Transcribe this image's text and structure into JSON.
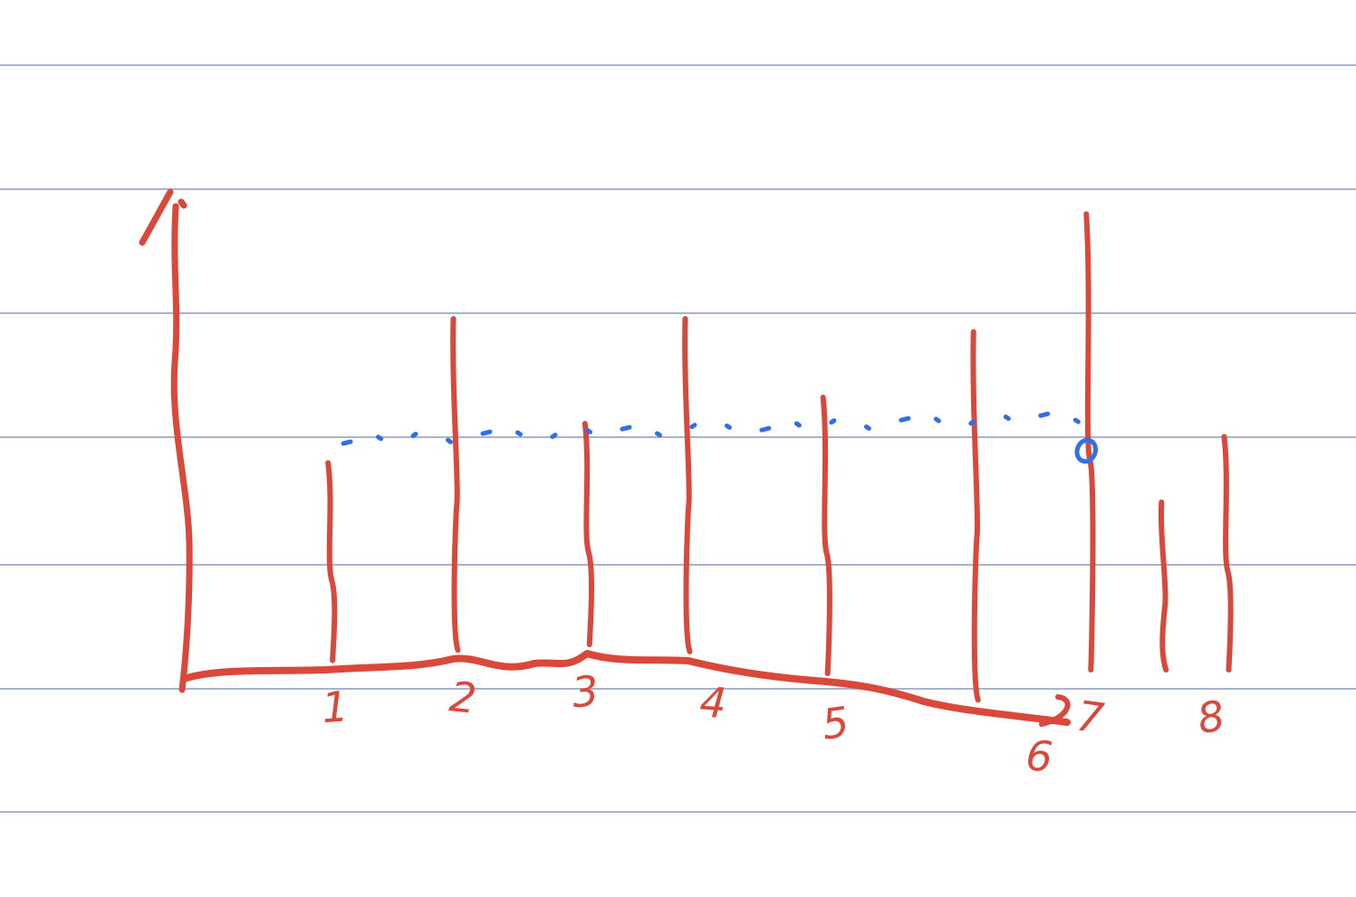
{
  "colors": {
    "ink_red": "#d9483a",
    "ink_blue": "#2f6fe8",
    "rule_line": "#a9b4cc",
    "background": "#ffffff"
  },
  "chart_data": {
    "type": "bar",
    "style": "hand-drawn sketch on ruled notebook paper, bars drawn as vertical strokes",
    "categories": [
      "1",
      "2",
      "3",
      "4",
      "5",
      "6",
      "7",
      "8"
    ],
    "tick_labels": [
      {
        "text": "1",
        "x": 1
      },
      {
        "text": "2",
        "x": 2
      },
      {
        "text": "3",
        "x": 3
      },
      {
        "text": "4",
        "x": 4
      },
      {
        "text": "5",
        "x": 5
      },
      {
        "text": "6",
        "x": 6.6
      },
      {
        "text": "7",
        "x": 7
      },
      {
        "text": "8",
        "x": 8
      }
    ],
    "series": [
      {
        "values": [
          {
            "x": 0.95,
            "y": 1.6
          },
          {
            "x": 1.95,
            "y": 2.7
          },
          {
            "x": 3.0,
            "y": 1.9
          },
          {
            "x": 3.8,
            "y": 2.7
          },
          {
            "x": 4.9,
            "y": 2.1
          },
          {
            "x": 6.1,
            "y": 2.6
          },
          {
            "x": 7.0,
            "y": 3.5
          },
          {
            "x": 7.6,
            "y": 1.3
          },
          {
            "x": 8.1,
            "y": 1.8
          }
        ]
      }
    ],
    "reference_line": {
      "y": 1.9,
      "style": "dotted",
      "color": "blue",
      "x_range": [
        1.0,
        7.0
      ],
      "end_marker": "circle"
    },
    "xlim": [
      -0.2,
      9.0
    ],
    "ylim": [
      0,
      4.0
    ],
    "title": "",
    "xlabel": "",
    "ylabel": "",
    "grid": false,
    "legend": "none"
  }
}
